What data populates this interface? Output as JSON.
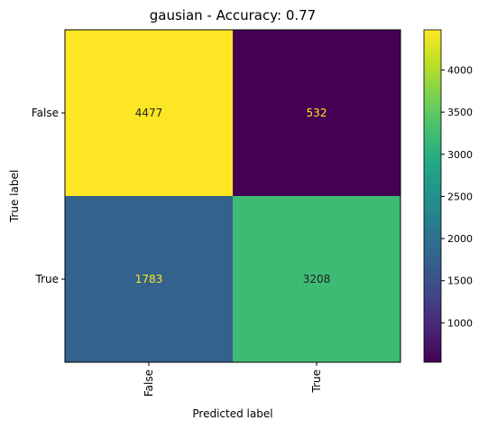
{
  "chart_data": {
    "type": "heatmap",
    "title": "gausian - Accuracy: 0.77",
    "xlabel": "Predicted label",
    "ylabel": "True label",
    "x_categories": [
      "False",
      "True"
    ],
    "y_categories": [
      "False",
      "True"
    ],
    "values": [
      [
        4477,
        532
      ],
      [
        1783,
        3208
      ]
    ],
    "colormap": "viridis",
    "colorbar": {
      "min": 532,
      "max": 4477,
      "ticks": [
        1000,
        1500,
        2000,
        2500,
        3000,
        3500,
        4000
      ]
    },
    "text_colors": {
      "on_dark": "#fde725",
      "on_light": "#222222"
    }
  }
}
